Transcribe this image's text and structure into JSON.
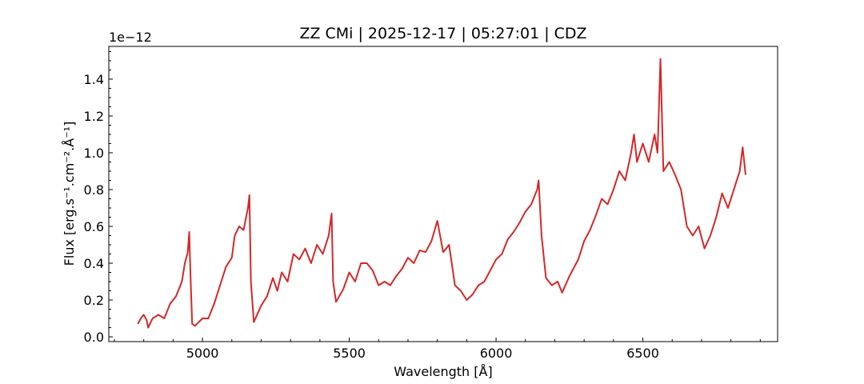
{
  "chart_data": {
    "type": "line",
    "title": "ZZ CMi | 2025-12-17 | 05:27:01 | CDZ",
    "xlabel": "Wavelength [Å]",
    "ylabel": "Flux [erg.s⁻¹.cm⁻².Å⁻¹]",
    "offset_label": "1e−12",
    "color": "#d62728",
    "x": [
      4780,
      4790,
      4800,
      4810,
      4815,
      4830,
      4850,
      4870,
      4890,
      4910,
      4930,
      4940,
      4950,
      4955,
      4960,
      4965,
      4975,
      5000,
      5020,
      5040,
      5060,
      5080,
      5100,
      5110,
      5125,
      5140,
      5155,
      5160,
      5165,
      5175,
      5200,
      5220,
      5240,
      5255,
      5270,
      5290,
      5310,
      5330,
      5350,
      5370,
      5390,
      5410,
      5430,
      5440,
      5445,
      5455,
      5480,
      5500,
      5520,
      5540,
      5560,
      5580,
      5600,
      5620,
      5640,
      5660,
      5680,
      5700,
      5720,
      5740,
      5760,
      5780,
      5800,
      5820,
      5840,
      5860,
      5880,
      5900,
      5920,
      5940,
      5960,
      5980,
      6000,
      6020,
      6040,
      6060,
      6080,
      6100,
      6120,
      6140,
      6145,
      6155,
      6170,
      6190,
      6210,
      6225,
      6250,
      6280,
      6300,
      6320,
      6340,
      6360,
      6380,
      6400,
      6420,
      6440,
      6460,
      6470,
      6480,
      6500,
      6520,
      6540,
      6550,
      6560,
      6570,
      6590,
      6610,
      6630,
      6650,
      6670,
      6690,
      6710,
      6730,
      6750,
      6770,
      6790,
      6810,
      6830,
      6840,
      6850
    ],
    "values": [
      0.07,
      0.1,
      0.12,
      0.09,
      0.05,
      0.1,
      0.12,
      0.1,
      0.18,
      0.22,
      0.3,
      0.4,
      0.46,
      0.57,
      0.3,
      0.07,
      0.06,
      0.1,
      0.1,
      0.18,
      0.28,
      0.38,
      0.43,
      0.55,
      0.6,
      0.58,
      0.7,
      0.77,
      0.3,
      0.08,
      0.17,
      0.22,
      0.32,
      0.25,
      0.35,
      0.3,
      0.45,
      0.42,
      0.48,
      0.4,
      0.5,
      0.45,
      0.55,
      0.67,
      0.3,
      0.19,
      0.26,
      0.35,
      0.3,
      0.4,
      0.4,
      0.36,
      0.28,
      0.3,
      0.28,
      0.33,
      0.37,
      0.43,
      0.4,
      0.47,
      0.46,
      0.52,
      0.63,
      0.46,
      0.5,
      0.28,
      0.25,
      0.2,
      0.23,
      0.28,
      0.3,
      0.36,
      0.42,
      0.45,
      0.53,
      0.57,
      0.62,
      0.68,
      0.72,
      0.8,
      0.85,
      0.55,
      0.32,
      0.28,
      0.3,
      0.24,
      0.33,
      0.42,
      0.52,
      0.58,
      0.66,
      0.75,
      0.72,
      0.8,
      0.9,
      0.85,
      1.0,
      1.1,
      0.95,
      1.05,
      0.95,
      1.1,
      1.0,
      1.51,
      0.9,
      0.95,
      0.88,
      0.8,
      0.6,
      0.55,
      0.6,
      0.48,
      0.55,
      0.65,
      0.78,
      0.7,
      0.8,
      0.9,
      1.03,
      0.88
    ],
    "xlim": [
      4681,
      6959
    ],
    "ylim": [
      -0.026,
      1.578
    ],
    "xticks": [
      5000,
      5500,
      6000,
      6500
    ],
    "yticks": [
      {
        "value": 0,
        "label": "0.0"
      },
      0.2,
      0.4,
      0.6,
      0.8,
      {
        "value": 1,
        "label": "1.0"
      },
      1.2,
      1.4
    ],
    "xminorticks": [
      4700,
      4800,
      4900,
      5100,
      5200,
      5300,
      5400,
      5600,
      5700,
      5800,
      5900,
      6100,
      6200,
      6300,
      6400,
      6600,
      6700,
      6800,
      6900
    ],
    "yminorticks": [
      0.05,
      0.1,
      0.15,
      0.25,
      0.3,
      0.35,
      0.45,
      0.5,
      0.55,
      0.65,
      0.7,
      0.75,
      0.85,
      0.9,
      0.95,
      1.05,
      1.1,
      1.15,
      1.25,
      1.3,
      1.35,
      1.45,
      1.5,
      1.55
    ]
  }
}
